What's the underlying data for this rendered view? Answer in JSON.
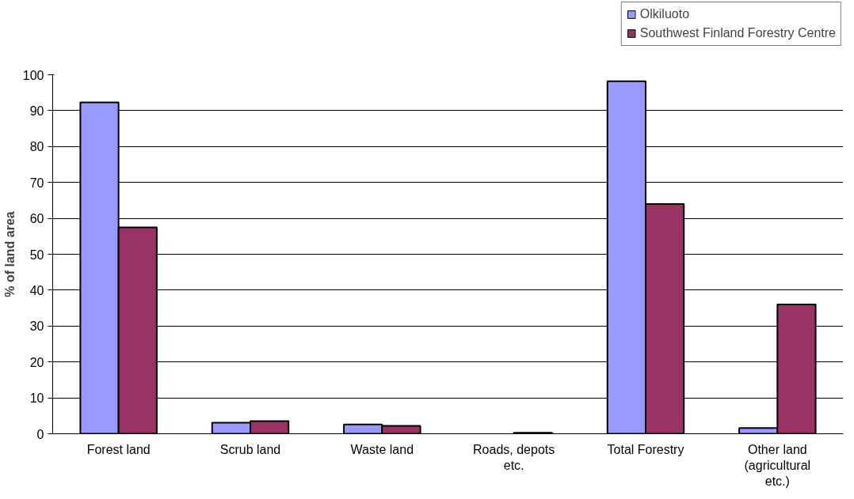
{
  "chart_data": {
    "type": "bar",
    "ylabel": "% of land area",
    "categories": [
      "Forest land",
      "Scrub land",
      "Waste land",
      "Roads, depots etc.",
      "Total Forestry",
      "Other land (agricultural etc.)"
    ],
    "series": [
      {
        "name": "Olkiluoto",
        "color": "#9999ff",
        "values": [
          92.3,
          3.1,
          2.6,
          null,
          98.2,
          1.6
        ]
      },
      {
        "name": "Southwest Finland Forestry Centre",
        "color": "#993366",
        "values": [
          57.5,
          3.5,
          2.2,
          0.3,
          64.0,
          36.0
        ]
      }
    ],
    "ylim": [
      0,
      100
    ],
    "yticks": [
      0,
      10,
      20,
      30,
      40,
      50,
      60,
      70,
      80,
      90,
      100
    ],
    "grid": "y",
    "legend": "top right"
  }
}
